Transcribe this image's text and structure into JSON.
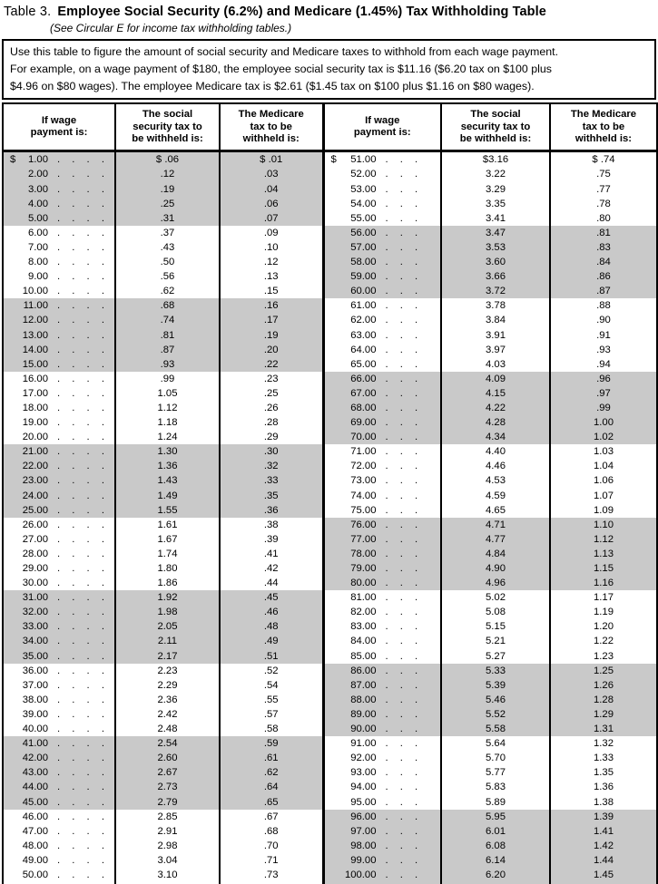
{
  "document": {
    "table_label": "Table 3.",
    "title": "Employee Social Security (6.2%) and Medicare (1.45%) Tax Withholding Table",
    "subtitle": "(See Circular E for income tax withholding tables.)",
    "instructions": "Use this table to figure the amount of social security and Medicare taxes to withhold from each wage payment.\nFor example, on a wage payment of $180, the employee social security tax is $11.16 ($6.20 tax on $100 plus\n$4.96 on $80 wages). The employee Medicare tax is $2.61 ($1.45 tax on $100 plus $1.16 on $80 wages)."
  },
  "column_headers": {
    "wage": "If wage\npayment is:",
    "social_security": "The social\nsecurity tax to\nbe withheld is:",
    "medicare": "The Medicare\ntax to be\nwithheld is:"
  },
  "colors": {
    "shaded_row_band": "#c9c9c9",
    "border": "#000000",
    "background": "#ffffff"
  },
  "tables": [
    {
      "id": "left",
      "currency_symbol": "$",
      "dot_leader": ". . . .",
      "first_row_prefix": {
        "social_security": "$ ",
        "medicare": "$ "
      },
      "first_band_shaded": true,
      "rows": [
        [
          "1.00",
          ".06",
          ".01"
        ],
        [
          "2.00",
          ".12",
          ".03"
        ],
        [
          "3.00",
          ".19",
          ".04"
        ],
        [
          "4.00",
          ".25",
          ".06"
        ],
        [
          "5.00",
          ".31",
          ".07"
        ],
        [
          "6.00",
          ".37",
          ".09"
        ],
        [
          "7.00",
          ".43",
          ".10"
        ],
        [
          "8.00",
          ".50",
          ".12"
        ],
        [
          "9.00",
          ".56",
          ".13"
        ],
        [
          "10.00",
          ".62",
          ".15"
        ],
        [
          "11.00",
          ".68",
          ".16"
        ],
        [
          "12.00",
          ".74",
          ".17"
        ],
        [
          "13.00",
          ".81",
          ".19"
        ],
        [
          "14.00",
          ".87",
          ".20"
        ],
        [
          "15.00",
          ".93",
          ".22"
        ],
        [
          "16.00",
          ".99",
          ".23"
        ],
        [
          "17.00",
          "1.05",
          ".25"
        ],
        [
          "18.00",
          "1.12",
          ".26"
        ],
        [
          "19.00",
          "1.18",
          ".28"
        ],
        [
          "20.00",
          "1.24",
          ".29"
        ],
        [
          "21.00",
          "1.30",
          ".30"
        ],
        [
          "22.00",
          "1.36",
          ".32"
        ],
        [
          "23.00",
          "1.43",
          ".33"
        ],
        [
          "24.00",
          "1.49",
          ".35"
        ],
        [
          "25.00",
          "1.55",
          ".36"
        ],
        [
          "26.00",
          "1.61",
          ".38"
        ],
        [
          "27.00",
          "1.67",
          ".39"
        ],
        [
          "28.00",
          "1.74",
          ".41"
        ],
        [
          "29.00",
          "1.80",
          ".42"
        ],
        [
          "30.00",
          "1.86",
          ".44"
        ],
        [
          "31.00",
          "1.92",
          ".45"
        ],
        [
          "32.00",
          "1.98",
          ".46"
        ],
        [
          "33.00",
          "2.05",
          ".48"
        ],
        [
          "34.00",
          "2.11",
          ".49"
        ],
        [
          "35.00",
          "2.17",
          ".51"
        ],
        [
          "36.00",
          "2.23",
          ".52"
        ],
        [
          "37.00",
          "2.29",
          ".54"
        ],
        [
          "38.00",
          "2.36",
          ".55"
        ],
        [
          "39.00",
          "2.42",
          ".57"
        ],
        [
          "40.00",
          "2.48",
          ".58"
        ],
        [
          "41.00",
          "2.54",
          ".59"
        ],
        [
          "42.00",
          "2.60",
          ".61"
        ],
        [
          "43.00",
          "2.67",
          ".62"
        ],
        [
          "44.00",
          "2.73",
          ".64"
        ],
        [
          "45.00",
          "2.79",
          ".65"
        ],
        [
          "46.00",
          "2.85",
          ".67"
        ],
        [
          "47.00",
          "2.91",
          ".68"
        ],
        [
          "48.00",
          "2.98",
          ".70"
        ],
        [
          "49.00",
          "3.04",
          ".71"
        ],
        [
          "50.00",
          "3.10",
          ".73"
        ]
      ]
    },
    {
      "id": "right",
      "currency_symbol": "$",
      "dot_leader": ". . .",
      "first_row_prefix": {
        "social_security": "$",
        "medicare": "$ "
      },
      "first_band_shaded": false,
      "rows": [
        [
          "51.00",
          "3.16",
          ".74"
        ],
        [
          "52.00",
          "3.22",
          ".75"
        ],
        [
          "53.00",
          "3.29",
          ".77"
        ],
        [
          "54.00",
          "3.35",
          ".78"
        ],
        [
          "55.00",
          "3.41",
          ".80"
        ],
        [
          "56.00",
          "3.47",
          ".81"
        ],
        [
          "57.00",
          "3.53",
          ".83"
        ],
        [
          "58.00",
          "3.60",
          ".84"
        ],
        [
          "59.00",
          "3.66",
          ".86"
        ],
        [
          "60.00",
          "3.72",
          ".87"
        ],
        [
          "61.00",
          "3.78",
          ".88"
        ],
        [
          "62.00",
          "3.84",
          ".90"
        ],
        [
          "63.00",
          "3.91",
          ".91"
        ],
        [
          "64.00",
          "3.97",
          ".93"
        ],
        [
          "65.00",
          "4.03",
          ".94"
        ],
        [
          "66.00",
          "4.09",
          ".96"
        ],
        [
          "67.00",
          "4.15",
          ".97"
        ],
        [
          "68.00",
          "4.22",
          ".99"
        ],
        [
          "69.00",
          "4.28",
          "1.00"
        ],
        [
          "70.00",
          "4.34",
          "1.02"
        ],
        [
          "71.00",
          "4.40",
          "1.03"
        ],
        [
          "72.00",
          "4.46",
          "1.04"
        ],
        [
          "73.00",
          "4.53",
          "1.06"
        ],
        [
          "74.00",
          "4.59",
          "1.07"
        ],
        [
          "75.00",
          "4.65",
          "1.09"
        ],
        [
          "76.00",
          "4.71",
          "1.10"
        ],
        [
          "77.00",
          "4.77",
          "1.12"
        ],
        [
          "78.00",
          "4.84",
          "1.13"
        ],
        [
          "79.00",
          "4.90",
          "1.15"
        ],
        [
          "80.00",
          "4.96",
          "1.16"
        ],
        [
          "81.00",
          "5.02",
          "1.17"
        ],
        [
          "82.00",
          "5.08",
          "1.19"
        ],
        [
          "83.00",
          "5.15",
          "1.20"
        ],
        [
          "84.00",
          "5.21",
          "1.22"
        ],
        [
          "85.00",
          "5.27",
          "1.23"
        ],
        [
          "86.00",
          "5.33",
          "1.25"
        ],
        [
          "87.00",
          "5.39",
          "1.26"
        ],
        [
          "88.00",
          "5.46",
          "1.28"
        ],
        [
          "89.00",
          "5.52",
          "1.29"
        ],
        [
          "90.00",
          "5.58",
          "1.31"
        ],
        [
          "91.00",
          "5.64",
          "1.32"
        ],
        [
          "92.00",
          "5.70",
          "1.33"
        ],
        [
          "93.00",
          "5.77",
          "1.35"
        ],
        [
          "94.00",
          "5.83",
          "1.36"
        ],
        [
          "95.00",
          "5.89",
          "1.38"
        ],
        [
          "96.00",
          "5.95",
          "1.39"
        ],
        [
          "97.00",
          "6.01",
          "1.41"
        ],
        [
          "98.00",
          "6.08",
          "1.42"
        ],
        [
          "99.00",
          "6.14",
          "1.44"
        ],
        [
          "100.00",
          "6.20",
          "1.45"
        ]
      ]
    }
  ]
}
